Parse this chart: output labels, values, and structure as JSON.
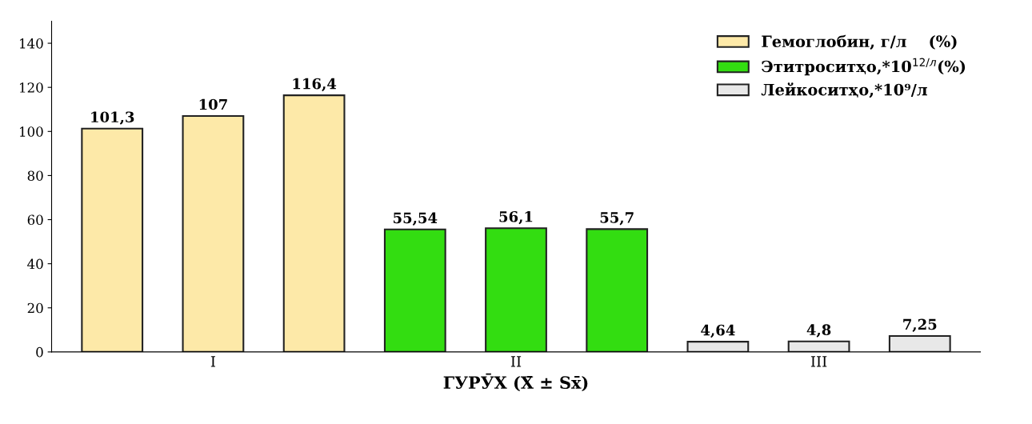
{
  "chart_data": {
    "type": "bar",
    "xlabel": "ГУРӮХ (X̄ ± Sx̄)",
    "categories": [
      null,
      "I",
      null,
      null,
      "II",
      null,
      null,
      "III",
      null
    ],
    "series": [
      {
        "name": "Гемоглобин, г/л    (%)",
        "color": "#fde9a8",
        "values": [
          101.3,
          107,
          116.4,
          null,
          null,
          null,
          null,
          null,
          null
        ],
        "value_labels": [
          "101,3",
          "107",
          "116,4",
          null,
          null,
          null,
          null,
          null,
          null
        ]
      },
      {
        "name": "Этитроситҳо,*10$^{12/л}$(%)",
        "color": "#33dd11",
        "values": [
          null,
          null,
          null,
          55.54,
          56.1,
          55.7,
          null,
          null,
          null
        ],
        "value_labels": [
          null,
          null,
          null,
          "55,54",
          "56,1",
          "55,7",
          null,
          null,
          null
        ]
      },
      {
        "name": "Лейкоситҳо,*10⁹/л",
        "color": "#e8e8e8",
        "values": [
          null,
          null,
          null,
          null,
          null,
          null,
          4.64,
          4.8,
          7.25
        ],
        "value_labels": [
          null,
          null,
          null,
          null,
          null,
          null,
          "4,64",
          "4,8",
          "7,25"
        ]
      }
    ],
    "ylim": [
      0,
      150
    ],
    "yticks": [
      0,
      20,
      40,
      60,
      80,
      100,
      120,
      140
    ],
    "grid": false,
    "legend": "top right"
  }
}
